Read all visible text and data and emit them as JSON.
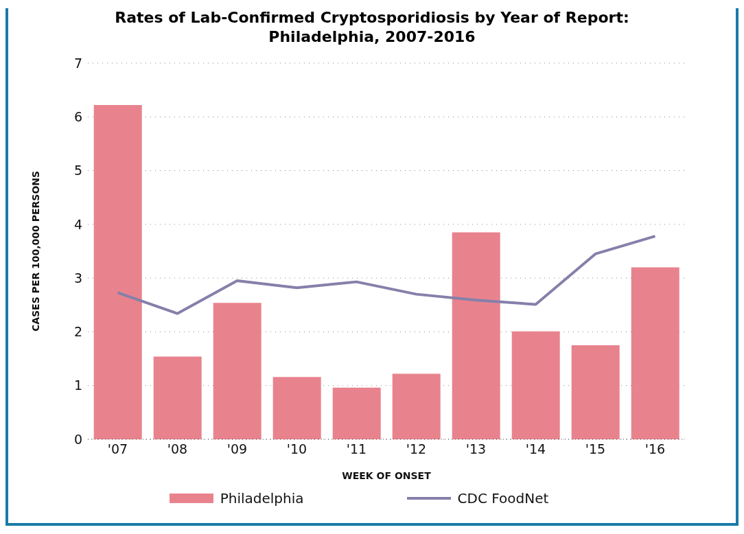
{
  "chart_data": {
    "type": "bar",
    "title": "Rates of Lab-Confirmed Cryptosporidiosis by Year of Report: Philadelphia, 2007-2016",
    "xlabel": "WEEK OF ONSET",
    "ylabel": "CASES PER 100,000 PERSONS",
    "categories": [
      "'07",
      "'08",
      "'09",
      "'10",
      "'11",
      "'12",
      "'13",
      "'14",
      "'15",
      "'16"
    ],
    "series": [
      {
        "name": "Philadelphia",
        "color": "#e8838e",
        "values": [
          6.22,
          1.54,
          2.54,
          1.16,
          0.96,
          1.22,
          3.85,
          2.01,
          1.75,
          3.2
        ]
      },
      {
        "name": "CDC FoodNet",
        "type": "line",
        "color": "#8580aa",
        "values": [
          2.73,
          2.34,
          2.95,
          2.82,
          2.93,
          2.7,
          2.59,
          2.51,
          3.45,
          3.78
        ]
      }
    ],
    "ylim": [
      0,
      7
    ],
    "yticks": [
      0,
      1,
      2,
      3,
      4,
      5,
      6,
      7
    ],
    "grid": "y",
    "legend": "bottom",
    "marker": "none",
    "line_style": "solid"
  }
}
